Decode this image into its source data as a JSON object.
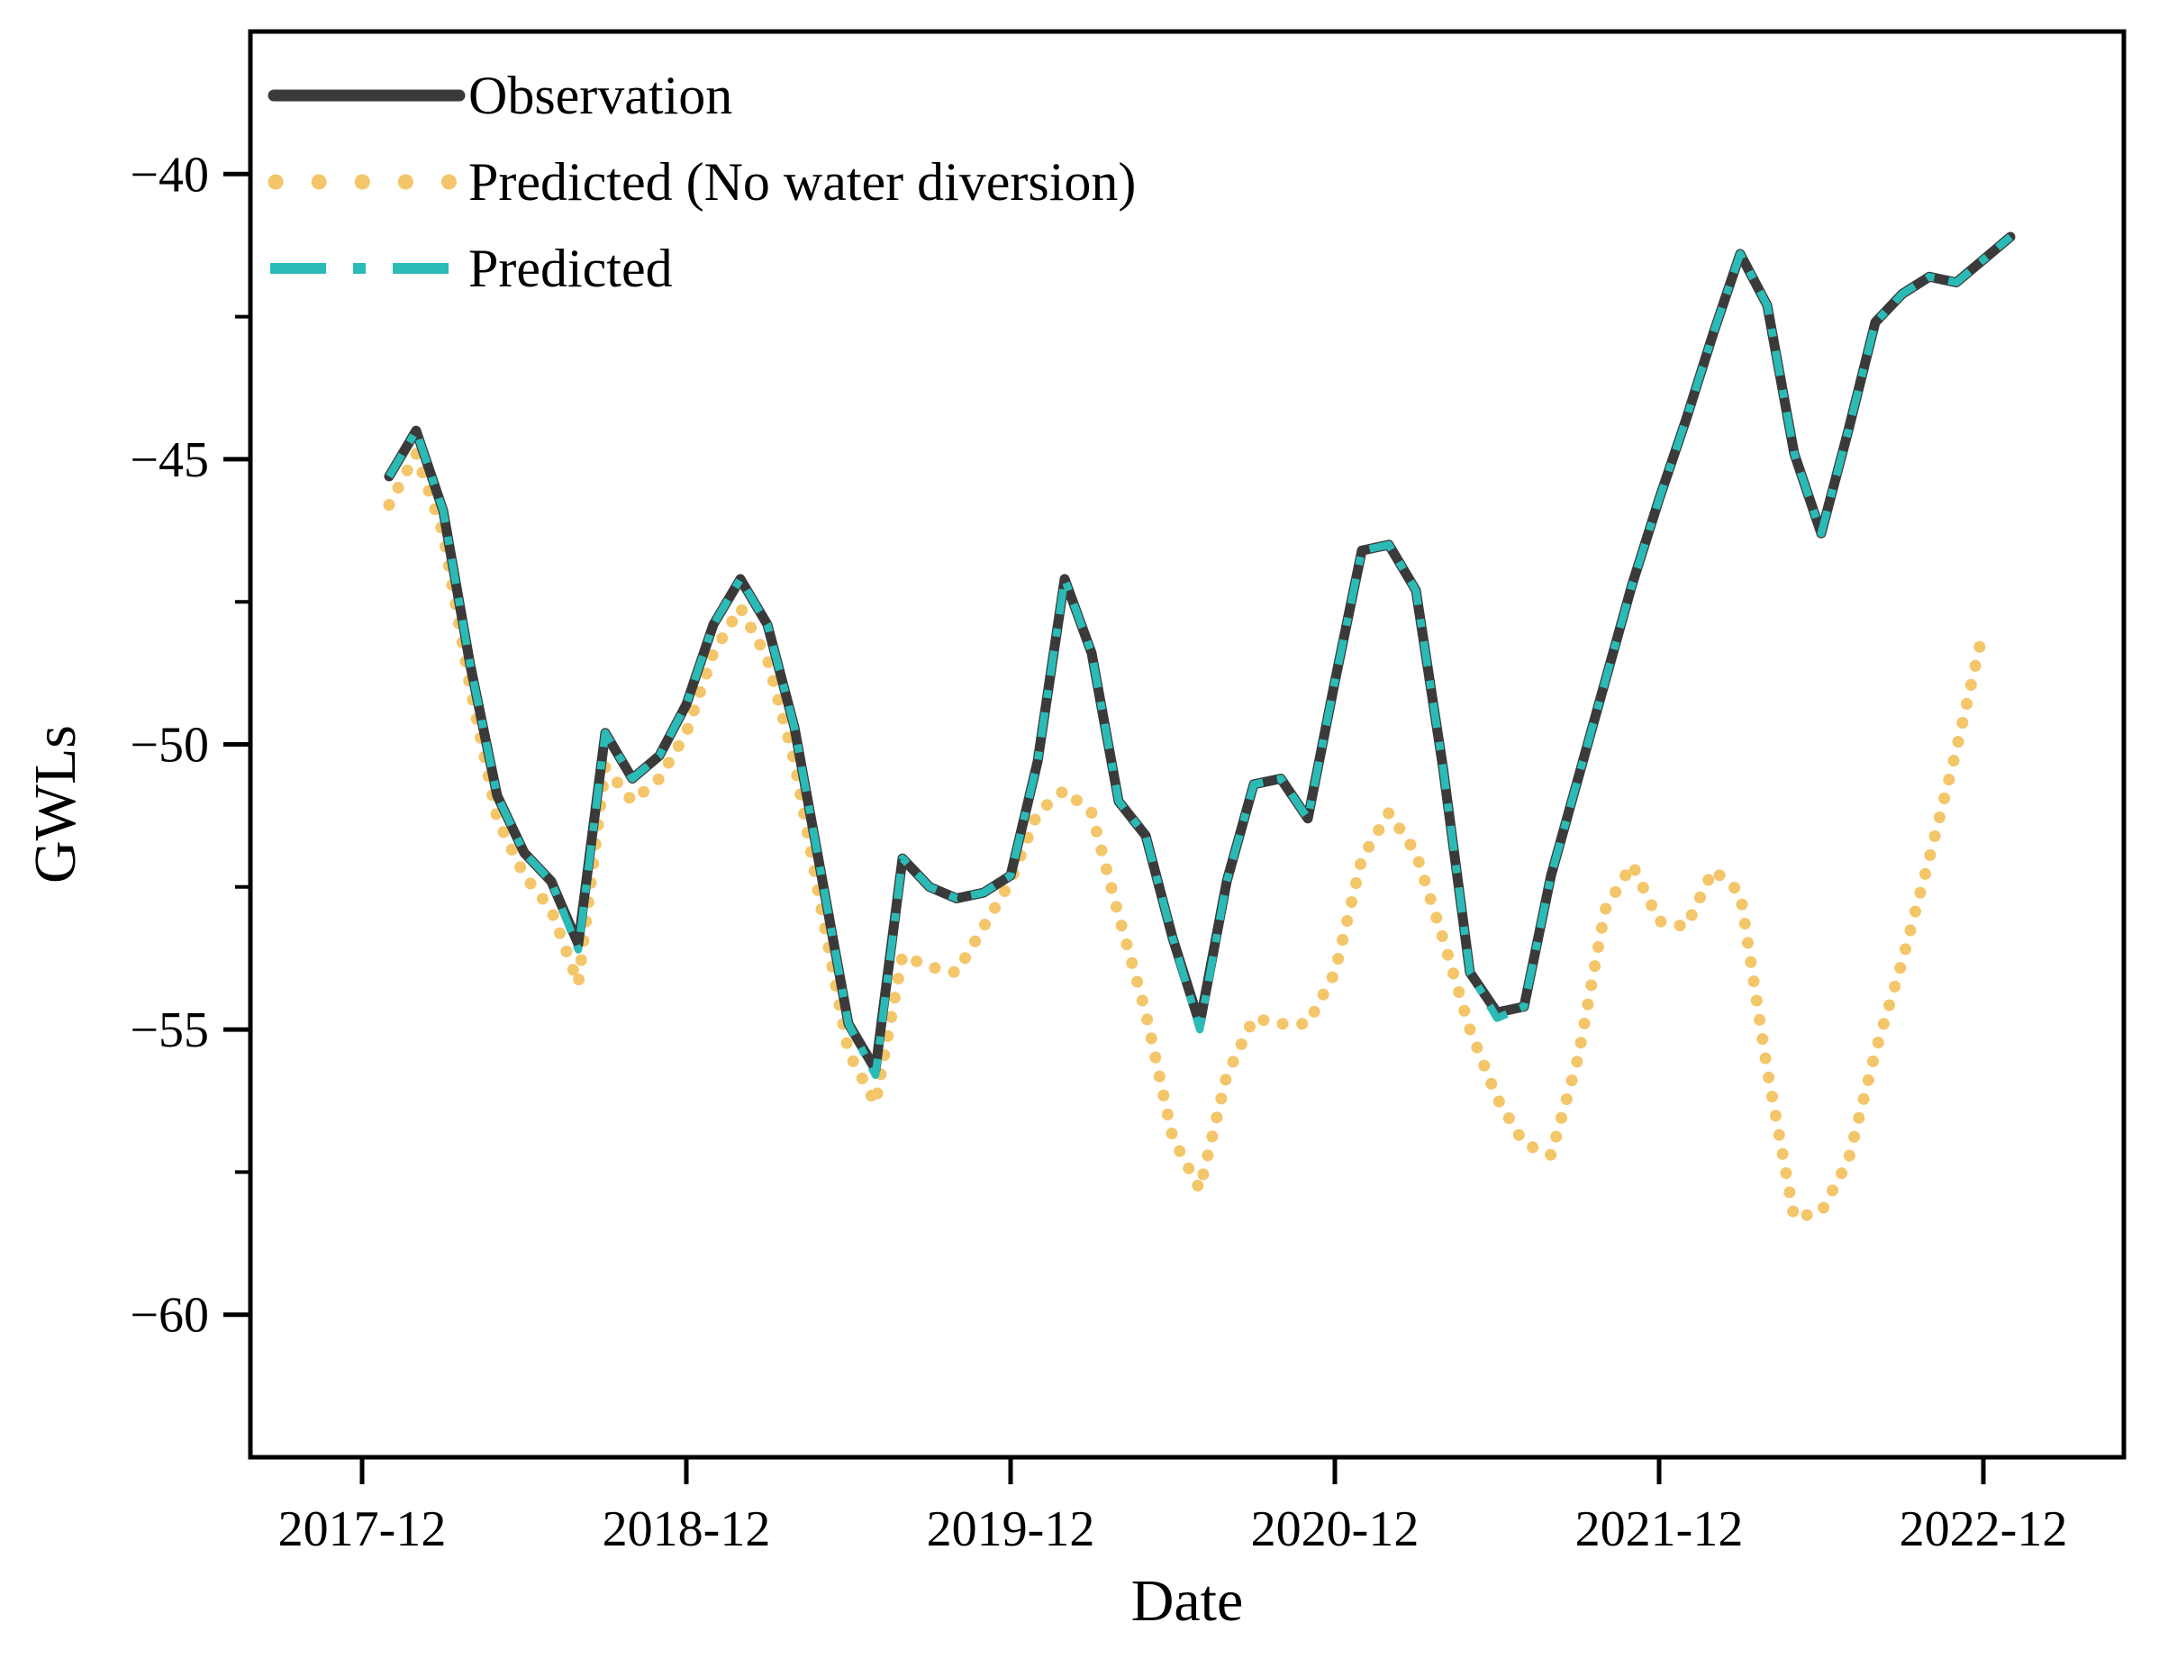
{
  "figure": {
    "background": "#ffffff",
    "plot_background": "#ffffff",
    "spine_color": "#000000"
  },
  "chart_data": {
    "type": "line",
    "title": "",
    "xlabel": "Date",
    "ylabel": "GWLs",
    "x": [
      "2018-01",
      "2018-02",
      "2018-03",
      "2018-04",
      "2018-05",
      "2018-06",
      "2018-07",
      "2018-08",
      "2018-09",
      "2018-10",
      "2018-11",
      "2018-12",
      "2019-01",
      "2019-02",
      "2019-03",
      "2019-04",
      "2019-05",
      "2019-06",
      "2019-07",
      "2019-08",
      "2019-09",
      "2019-10",
      "2019-11",
      "2019-12",
      "2020-01",
      "2020-02",
      "2020-03",
      "2020-04",
      "2020-05",
      "2020-06",
      "2020-07",
      "2020-08",
      "2020-09",
      "2020-10",
      "2020-11",
      "2020-12",
      "2021-01",
      "2021-02",
      "2021-03",
      "2021-04",
      "2021-05",
      "2021-06",
      "2021-07",
      "2021-08",
      "2021-09",
      "2021-10",
      "2021-11",
      "2021-12",
      "2022-01",
      "2022-02",
      "2022-03",
      "2022-04",
      "2022-05",
      "2022-06",
      "2022-07",
      "2022-08",
      "2022-09",
      "2022-10",
      "2022-11",
      "2022-12",
      "2023-01"
    ],
    "series": [
      {
        "name": "Observation",
        "color": "#3A3A3A",
        "style": "solid",
        "values": [
          -45.3,
          -44.5,
          -45.9,
          -48.6,
          -50.9,
          -51.9,
          -52.4,
          -53.5,
          -49.8,
          -50.6,
          -50.2,
          -49.3,
          -47.9,
          -47.1,
          -47.9,
          -49.7,
          -52.3,
          -54.9,
          -55.7,
          -52.0,
          -52.5,
          -52.7,
          -52.6,
          -52.3,
          -50.3,
          -47.1,
          -48.4,
          -51.0,
          -51.6,
          -53.4,
          -54.9,
          -52.4,
          -50.7,
          -50.6,
          -51.3,
          -48.9,
          -46.6,
          -46.5,
          -47.3,
          -50.4,
          -54.0,
          -54.7,
          -54.6,
          -52.3,
          -50.6,
          -48.9,
          -47.2,
          -45.7,
          -44.3,
          -42.8,
          -41.4,
          -42.3,
          -44.9,
          -46.3,
          -44.5,
          -42.6,
          -42.1,
          -41.8,
          -41.9,
          -41.5,
          -41.1
        ]
      },
      {
        "name": "Predicted (No water diversion)",
        "color": "#F4C66A",
        "style": "dotted",
        "values": [
          -45.8,
          -44.9,
          -46.3,
          -49.0,
          -51.3,
          -52.3,
          -52.9,
          -54.2,
          -50.4,
          -51.0,
          -50.6,
          -49.8,
          -48.4,
          -47.6,
          -48.5,
          -50.3,
          -52.9,
          -55.4,
          -56.3,
          -53.7,
          -53.9,
          -54.0,
          -53.2,
          -52.4,
          -51.2,
          -50.8,
          -51.2,
          -53.0,
          -54.7,
          -56.9,
          -57.8,
          -55.8,
          -54.8,
          -54.9,
          -54.9,
          -54.0,
          -52.0,
          -51.2,
          -51.9,
          -53.4,
          -55.0,
          -56.2,
          -57.0,
          -57.2,
          -55.5,
          -52.9,
          -52.1,
          -53.1,
          -53.2,
          -52.2,
          -52.6,
          -55.7,
          -58.3,
          -58.2,
          -57.3,
          -55.4,
          -53.8,
          -52.0,
          -50.1,
          -48.0,
          null
        ]
      },
      {
        "name": "Predicted",
        "color": "#2BBBB7",
        "style": "dashdot",
        "values": [
          -45.3,
          -44.5,
          -45.9,
          -48.6,
          -50.9,
          -51.9,
          -52.4,
          -53.6,
          -49.8,
          -50.6,
          -50.2,
          -49.3,
          -47.9,
          -47.1,
          -47.9,
          -49.7,
          -52.3,
          -54.9,
          -55.8,
          -52.0,
          -52.5,
          -52.7,
          -52.6,
          -52.3,
          -50.3,
          -47.1,
          -48.4,
          -51.0,
          -51.6,
          -53.4,
          -55.0,
          -52.4,
          -50.7,
          -50.6,
          -51.3,
          -48.9,
          -46.6,
          -46.5,
          -47.3,
          -50.4,
          -54.0,
          -54.8,
          -54.6,
          -52.3,
          -50.6,
          -48.9,
          -47.2,
          -45.7,
          -44.3,
          -42.8,
          -41.4,
          -42.3,
          -44.9,
          -46.3,
          -44.5,
          -42.6,
          -42.1,
          -41.8,
          -41.9,
          -41.5,
          -41.1
        ]
      }
    ],
    "y_major_ticks": [
      {
        "value": -40,
        "label": "−40"
      },
      {
        "value": -45,
        "label": "−45"
      },
      {
        "value": -50,
        "label": "−50"
      },
      {
        "value": -55,
        "label": "−55"
      },
      {
        "value": -60,
        "label": "−60"
      }
    ],
    "y_minor_ticks": [
      -42.5,
      -47.5,
      -52.5,
      -57.5
    ],
    "x_ticks": [
      "2017-12",
      "2018-12",
      "2019-12",
      "2020-12",
      "2021-12",
      "2022-12"
    ],
    "ylim": [
      -62.5,
      -37.5
    ],
    "grid": false,
    "legend_position": "upper-left"
  }
}
